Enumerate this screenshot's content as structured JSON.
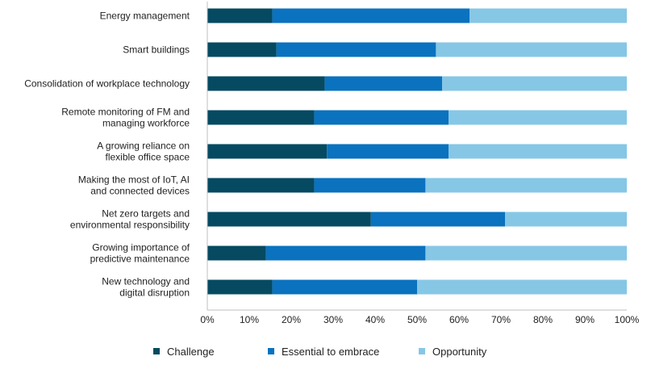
{
  "chart_data": {
    "type": "bar",
    "orientation": "horizontal",
    "stacked": true,
    "categories": [
      [
        "Energy management"
      ],
      [
        "Smart buildings"
      ],
      [
        "Consolidation of workplace technology"
      ],
      [
        "Remote monitoring of FM and",
        "managing workforce"
      ],
      [
        "A growing reliance on",
        "flexible office space"
      ],
      [
        "Making the most of IoT, AI",
        "and connected devices"
      ],
      [
        "Net zero targets and",
        "environmental responsibility"
      ],
      [
        "Growing importance of",
        "predictive maintenance"
      ],
      [
        "New technology and",
        "digital disruption"
      ]
    ],
    "series": [
      {
        "name": "Challenge",
        "color": "#054a61",
        "values": [
          15.5,
          16.5,
          28,
          25.5,
          28.5,
          25.5,
          39,
          14,
          15.5
        ]
      },
      {
        "name": "Essential to embrace",
        "color": "#0a72bf",
        "values": [
          47,
          38,
          28,
          32,
          29,
          26.5,
          32,
          38,
          34.5
        ]
      },
      {
        "name": "Opportunity",
        "color": "#86c7e6",
        "values": [
          37.5,
          45.5,
          44,
          42.5,
          42.5,
          48,
          29,
          48,
          50
        ]
      }
    ],
    "xticks": [
      "0%",
      "10%",
      "20%",
      "30%",
      "40%",
      "50%",
      "60%",
      "70%",
      "80%",
      "90%",
      "100%"
    ],
    "xlim": [
      0,
      100
    ],
    "grid": false,
    "legend": "bottom"
  }
}
